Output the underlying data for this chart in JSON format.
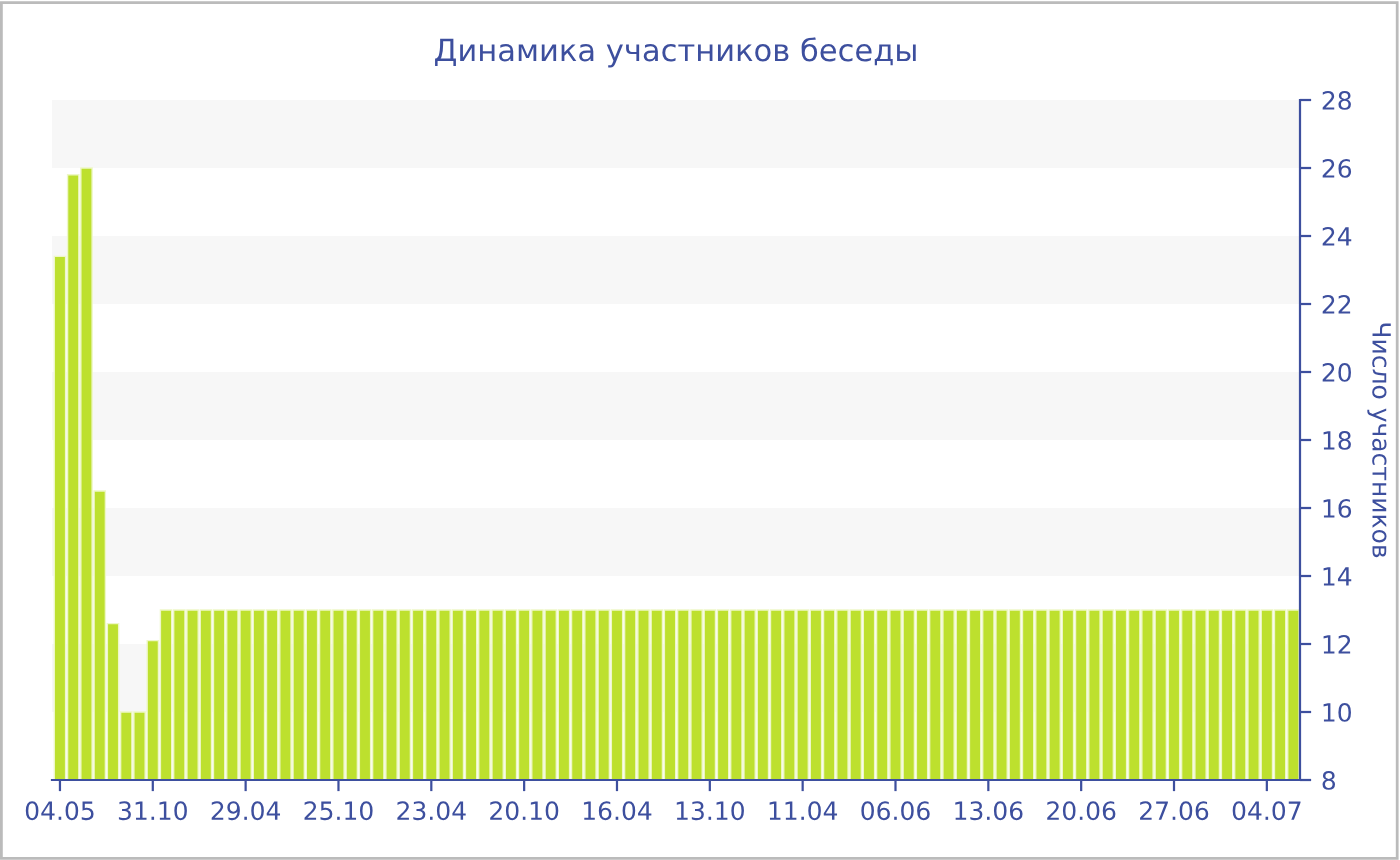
{
  "chart_data": {
    "type": "bar",
    "title": "Динамика участников беседы",
    "ylabel": "Число участников",
    "categories": [
      "04.05",
      null,
      null,
      null,
      null,
      null,
      null,
      "31.10",
      null,
      null,
      null,
      null,
      null,
      null,
      "29.04",
      null,
      null,
      null,
      null,
      null,
      null,
      "25.10",
      null,
      null,
      null,
      null,
      null,
      null,
      "23.04",
      null,
      null,
      null,
      null,
      null,
      null,
      "20.10",
      null,
      null,
      null,
      null,
      null,
      null,
      "16.04",
      null,
      null,
      null,
      null,
      null,
      null,
      "13.10",
      null,
      null,
      null,
      null,
      null,
      null,
      "11.04",
      null,
      null,
      null,
      null,
      null,
      null,
      "06.06",
      null,
      null,
      null,
      null,
      null,
      null,
      "13.06",
      null,
      null,
      null,
      null,
      null,
      null,
      "20.06",
      null,
      null,
      null,
      null,
      null,
      null,
      "27.06",
      null,
      null,
      null,
      null,
      null,
      null,
      "04.07",
      null,
      null
    ],
    "values": [
      23.4,
      25.8,
      26.0,
      16.5,
      12.6,
      10,
      10,
      12.1,
      13,
      13,
      13,
      13,
      13,
      13,
      13,
      13,
      13,
      13,
      13,
      13,
      13,
      13,
      13,
      13,
      13,
      13,
      13,
      13,
      13,
      13,
      13,
      13,
      13,
      13,
      13,
      13,
      13,
      13,
      13,
      13,
      13,
      13,
      13,
      13,
      13,
      13,
      13,
      13,
      13,
      13,
      13,
      13,
      13,
      13,
      13,
      13,
      13,
      13,
      13,
      13,
      13,
      13,
      13,
      13,
      13,
      13,
      13,
      13,
      13,
      13,
      13,
      13,
      13,
      13,
      13,
      13,
      13,
      13,
      13,
      13,
      13,
      13,
      13,
      13,
      13,
      13,
      13,
      13,
      13,
      13,
      13,
      13,
      13,
      13
    ],
    "color": "#bde02e",
    "ylim": [
      8,
      28
    ],
    "yticks": [
      8,
      10,
      12,
      14,
      16,
      18,
      20,
      22,
      24,
      26,
      28
    ],
    "bands": [
      {
        "axis": "y",
        "from": 10,
        "to": 12,
        "color": "#f7f7f7"
      },
      {
        "axis": "y",
        "from": 14,
        "to": 16,
        "color": "#f7f7f7"
      },
      {
        "axis": "y",
        "from": 18,
        "to": 20,
        "color": "#f7f7f7"
      },
      {
        "axis": "y",
        "from": 22,
        "to": 24,
        "color": "#f7f7f7"
      },
      {
        "axis": "y",
        "from": 26,
        "to": 28,
        "color": "#f7f7f7"
      }
    ],
    "legend": false
  }
}
